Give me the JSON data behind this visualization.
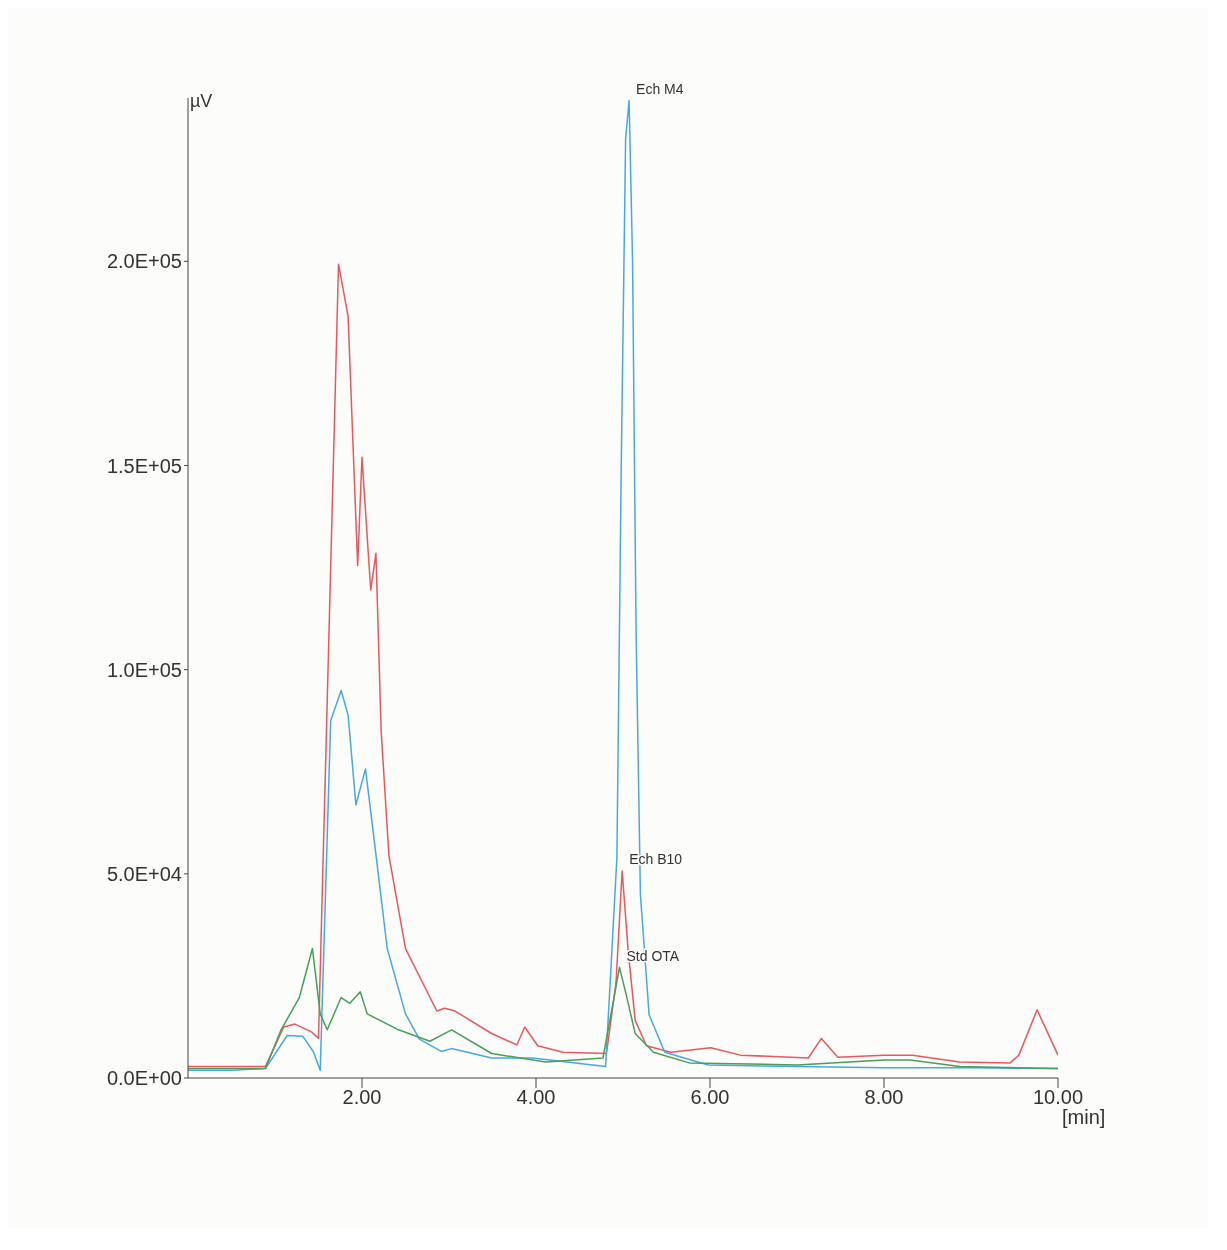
{
  "chart_data": {
    "type": "line",
    "xlabel": "[min]",
    "ylabel": "µV",
    "xlim": [
      0,
      10
    ],
    "ylim": [
      0,
      240000
    ],
    "xticks": [
      {
        "value": 2,
        "label": "2.00"
      },
      {
        "value": 4,
        "label": "4.00"
      },
      {
        "value": 6,
        "label": "6.00"
      },
      {
        "value": 8,
        "label": "8.00"
      },
      {
        "value": 10,
        "label": "10.00"
      }
    ],
    "yticks": [
      {
        "value": 0,
        "label": "0.0E+00"
      },
      {
        "value": 50000,
        "label": "5.0E+04"
      },
      {
        "value": 100000,
        "label": "1.0E+05"
      },
      {
        "value": 150000,
        "label": "1.5E+05"
      },
      {
        "value": 200000,
        "label": "2.0E+05"
      }
    ],
    "annotations": [
      {
        "text": "Ech M4",
        "x": 5.07,
        "y": 239400
      },
      {
        "text": "Ech B10",
        "x": 4.99,
        "y": 50700
      },
      {
        "text": "Std OTA",
        "x": 4.96,
        "y": 27100
      }
    ],
    "grid": false,
    "legend": false,
    "marker": "none",
    "line_style": "solid",
    "series": [
      {
        "color": "#e8585f",
        "x": [
          0,
          0.5,
          0.89,
          1.1,
          1.23,
          1.42,
          1.5,
          1.73,
          1.84,
          1.95,
          2.0,
          2.1,
          2.16,
          2.22,
          2.31,
          2.5,
          2.86,
          2.95,
          3.07,
          3.49,
          3.78,
          3.87,
          4.02,
          4.31,
          4.81,
          4.92,
          4.99,
          5.06,
          5.14,
          5.27,
          5.55,
          6.01,
          6.35,
          7.13,
          7.28,
          7.47,
          8.0,
          8.33,
          8.87,
          9.45,
          9.55,
          9.76,
          9.9,
          10.0
        ],
        "values": [
          2800,
          2800,
          2800,
          12500,
          13200,
          11300,
          9700,
          199300,
          186600,
          125500,
          152000,
          119500,
          128500,
          85000,
          54400,
          31700,
          16400,
          17100,
          16400,
          10900,
          8100,
          12500,
          7900,
          6300,
          6000,
          23400,
          50700,
          31000,
          14100,
          7900,
          6300,
          7400,
          5600,
          4900,
          9700,
          5100,
          5600,
          5600,
          3900,
          3700,
          5600,
          16700,
          10200,
          5600
        ]
      },
      {
        "color": "#4aa8e0",
        "x": [
          0,
          0.5,
          0.89,
          1.14,
          1.32,
          1.44,
          1.52,
          1.64,
          1.76,
          1.84,
          1.93,
          2.04,
          2.14,
          2.29,
          2.5,
          2.66,
          2.91,
          3.03,
          3.49,
          3.96,
          4.8,
          4.93,
          4.98,
          5.03,
          5.07,
          5.11,
          5.15,
          5.2,
          5.3,
          5.48,
          5.98,
          7.0,
          8.0,
          9.0,
          10.0
        ],
        "values": [
          1900,
          1900,
          2300,
          10400,
          10200,
          6500,
          1900,
          87500,
          94900,
          88900,
          66900,
          75700,
          58300,
          31700,
          15700,
          9500,
          6500,
          7200,
          4900,
          4900,
          2800,
          54000,
          150000,
          230000,
          239400,
          200000,
          110000,
          45000,
          15500,
          6300,
          3200,
          2800,
          2500,
          2500,
          2300
        ]
      },
      {
        "color": "#4a9e5c",
        "x": [
          0,
          0.5,
          0.89,
          1.07,
          1.28,
          1.43,
          1.52,
          1.6,
          1.76,
          1.86,
          1.98,
          2.06,
          2.42,
          2.78,
          3.03,
          3.49,
          4.11,
          4.77,
          4.96,
          5.04,
          5.14,
          5.35,
          5.76,
          7.0,
          8.0,
          8.3,
          8.87,
          10.0
        ],
        "values": [
          2300,
          2300,
          2300,
          11800,
          19700,
          31700,
          15700,
          11800,
          19700,
          18300,
          21100,
          15700,
          11800,
          9000,
          11800,
          6000,
          3900,
          4900,
          27100,
          20100,
          10900,
          6300,
          3700,
          3200,
          4400,
          4400,
          2800,
          2300
        ]
      }
    ]
  }
}
